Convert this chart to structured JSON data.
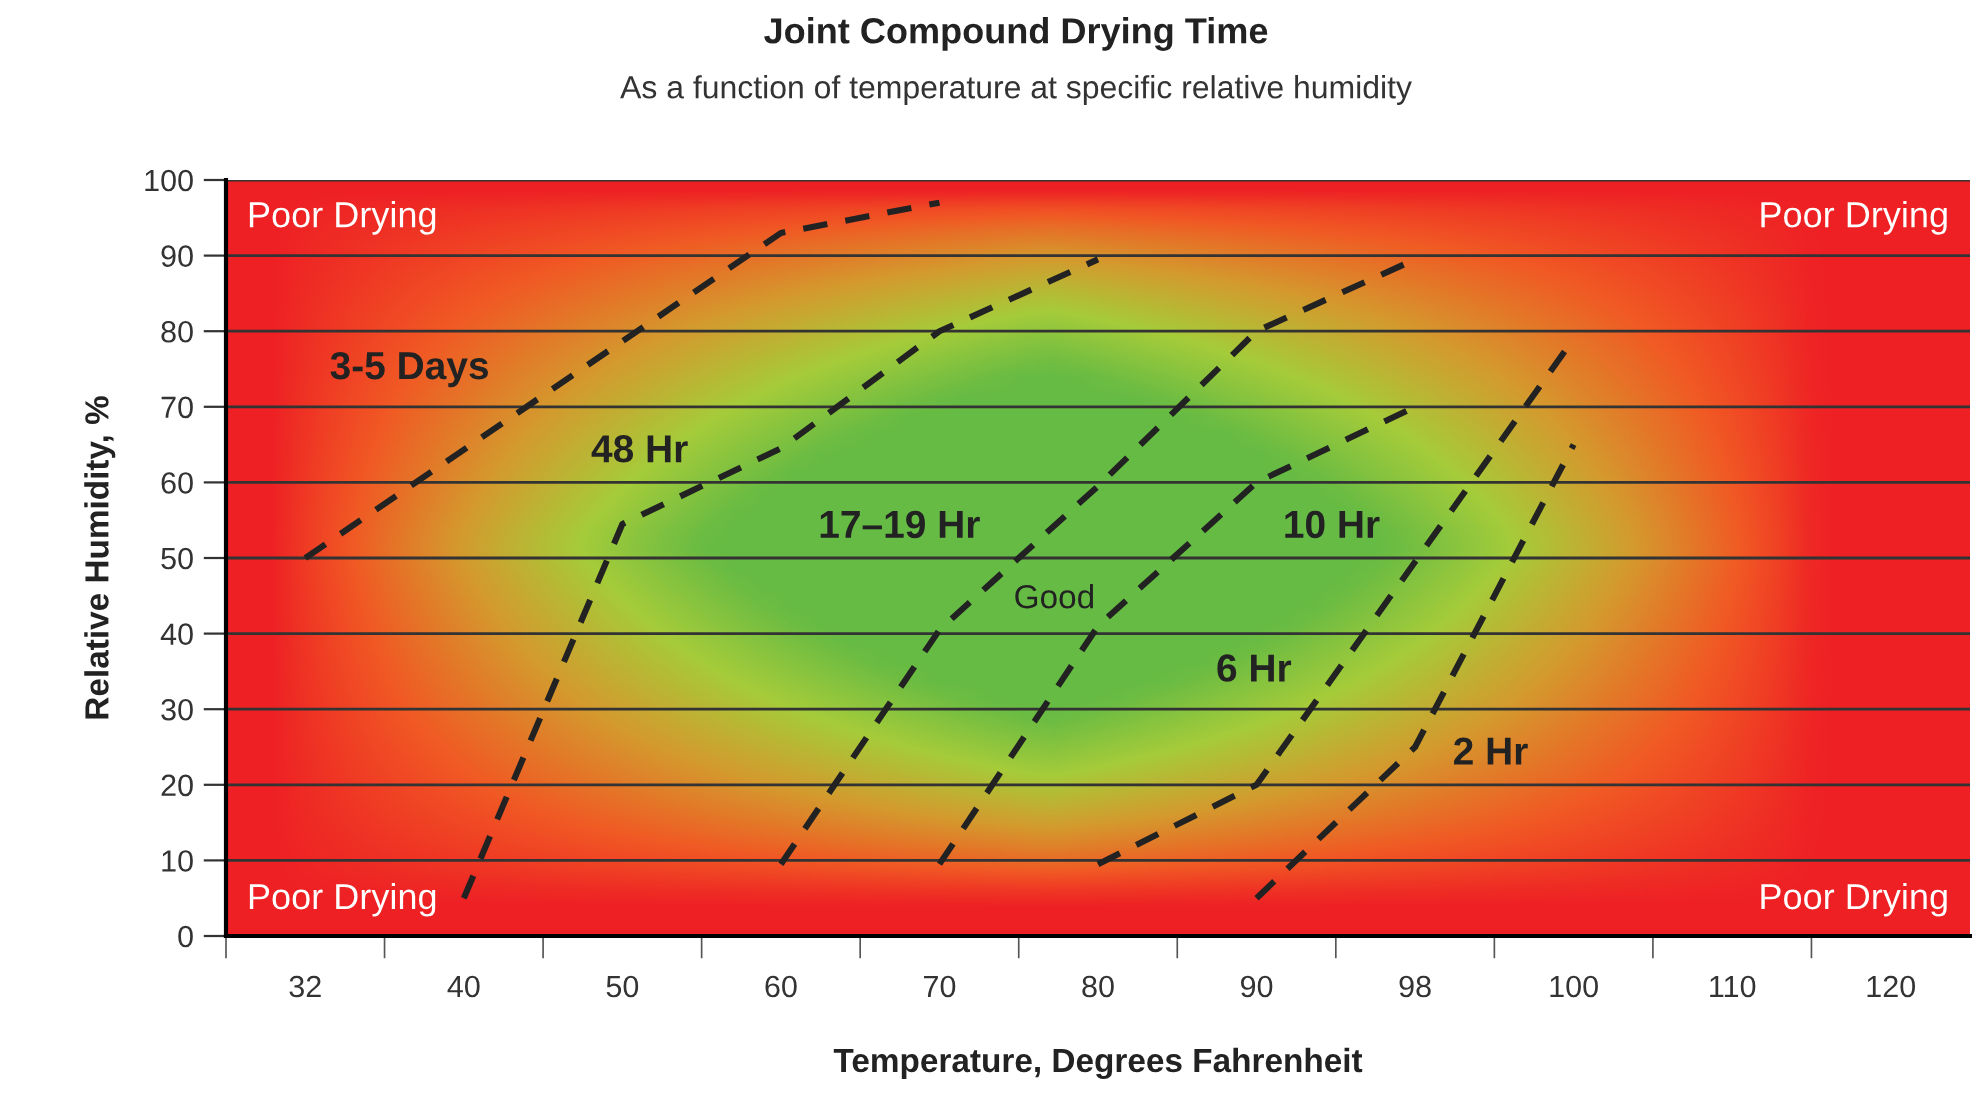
{
  "chart_data": {
    "type": "line",
    "title": "Joint Compound Drying Time",
    "subtitle": "As a function of temperature at specific relative humidity",
    "xlabel": "Temperature, Degrees Fahrenheit",
    "ylabel": "Relative Humidity, %",
    "categories": [
      "32",
      "40",
      "50",
      "60",
      "70",
      "80",
      "90",
      "98",
      "100",
      "110",
      "120"
    ],
    "series": [
      {
        "name": "3-5 Days",
        "color": "#222222",
        "x": [
          "32",
          "60",
          "70"
        ],
        "values": [
          50,
          93,
          97
        ]
      },
      {
        "name": "48 Hr",
        "color": "#222222",
        "x": [
          "40",
          "50",
          "60",
          "70",
          "80"
        ],
        "values": [
          5,
          54.5,
          64.5,
          80,
          89.5
        ]
      },
      {
        "name": "17–19 Hr",
        "color": "#222222",
        "x": [
          "60",
          "70",
          "80",
          "90",
          "98"
        ],
        "values": [
          9.5,
          40.5,
          59.5,
          80,
          89.5
        ]
      },
      {
        "name": "10 Hr",
        "color": "#222222",
        "x": [
          "70",
          "80",
          "90",
          "98"
        ],
        "values": [
          9.5,
          41,
          60,
          70
        ]
      },
      {
        "name": "6 Hr",
        "color": "#222222",
        "x": [
          "80",
          "90",
          "100"
        ],
        "values": [
          9.5,
          20,
          79
        ]
      },
      {
        "name": "2 Hr",
        "color": "#222222",
        "x": [
          "90",
          "98",
          "100"
        ],
        "values": [
          5,
          25,
          65
        ]
      }
    ],
    "annotations": [
      "Good",
      "Poor Drying",
      "Poor Drying",
      "Poor Drying",
      "Poor Drying"
    ],
    "ylim": [
      0,
      100
    ],
    "yticks": [
      0,
      10,
      20,
      30,
      40,
      50,
      60,
      70,
      80,
      90,
      100
    ],
    "grid": "y",
    "line_style": "dashed",
    "marker": "none",
    "legend": false
  }
}
